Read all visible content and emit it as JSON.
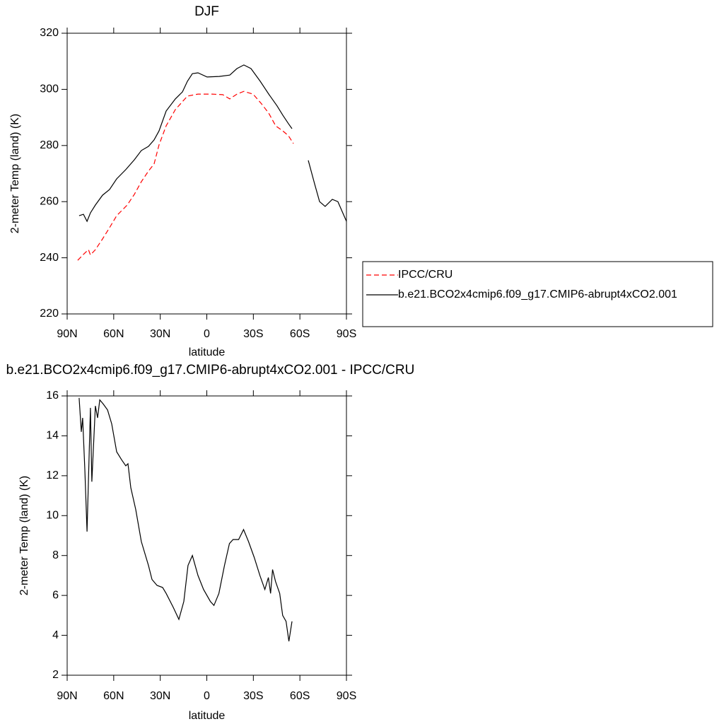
{
  "chart_data": [
    {
      "type": "line",
      "title": "DJF",
      "xlabel": "latitude",
      "ylabel": "2-meter Temp (land) (K)",
      "xlim": [
        90,
        -90
      ],
      "xticks": [
        {
          "value": 90,
          "label": "90N"
        },
        {
          "value": 60,
          "label": "60N"
        },
        {
          "value": 30,
          "label": "30N"
        },
        0,
        {
          "value": -30,
          "label": "30S"
        },
        {
          "value": -60,
          "label": "60S"
        },
        {
          "value": -90,
          "label": "90S"
        }
      ],
      "ylim": [
        220,
        320
      ],
      "yticks": [
        220,
        240,
        260,
        280,
        300,
        320
      ],
      "legend": "right",
      "series": [
        {
          "name": "IPCC/CRU",
          "color": "#ff0000",
          "dash": true,
          "x": [
            83.2,
            79.5,
            76.3,
            75,
            71.8,
            67.2,
            62.7,
            58.1,
            51.3,
            46.7,
            42.2,
            37.6,
            34,
            30.8,
            26.2,
            20.3,
            12.5,
            5.7,
            -3.4,
            -10.3,
            -14.8,
            -19.4,
            -23.9,
            -29.8,
            -35.3,
            -39.9,
            -44.4,
            -49,
            -52.6,
            -55.8
          ],
          "values": [
            239.1,
            241.2,
            242.9,
            241,
            242.9,
            246.7,
            250.7,
            255,
            258.8,
            262.6,
            267.1,
            270.9,
            273.4,
            280.2,
            287,
            292.8,
            297.6,
            298.3,
            298.3,
            298.1,
            296.6,
            298.3,
            299.3,
            298.3,
            294.8,
            291.5,
            287,
            285.2,
            283.5,
            280.7
          ]
        },
        {
          "name": "b.e21.BCO2x4cmip6.f09_g17.CMIP6-abrupt4xCO2.001",
          "color": "#000000",
          "dash": false,
          "x": [
            82.3,
            79.5,
            77.2,
            75,
            71.8,
            67.2,
            62.7,
            58.1,
            52.2,
            46.7,
            42.2,
            37.6,
            34,
            30.8,
            26.2,
            20.3,
            15.7,
            12.5,
            9.3,
            5.7,
            -0.2,
            -8,
            -14.8,
            -19.4,
            -23.9,
            -28.5,
            -34.4,
            -39.9,
            -45.3,
            -49,
            -52.6,
            -54.9,
            -60,
            -65.4,
            -69.5,
            -72.7,
            -76.3,
            -80.9,
            -84.5,
            -90
          ],
          "values": [
            255,
            255.5,
            253,
            256,
            258.8,
            262.3,
            264.3,
            268.1,
            271.4,
            274.9,
            278.2,
            279.7,
            282,
            285.2,
            292.3,
            296.6,
            299.1,
            302.9,
            305.6,
            305.9,
            304.4,
            304.6,
            305.1,
            307.4,
            308.7,
            307.4,
            302.9,
            298.3,
            294.1,
            290.8,
            287.8,
            286,
            null,
            274.7,
            266.3,
            260,
            258.3,
            260.8,
            260,
            253
          ]
        }
      ]
    },
    {
      "type": "line",
      "title": "b.e21.BCO2x4cmip6.f09_g17.CMIP6-abrupt4xCO2.001 - IPCC/CRU",
      "xlabel": "latitude",
      "ylabel": "2-meter Temp (land) (K)",
      "xlim": [
        90,
        -90
      ],
      "xticks": [
        {
          "value": 90,
          "label": "90N"
        },
        {
          "value": 60,
          "label": "60N"
        },
        {
          "value": 30,
          "label": "30N"
        },
        0,
        {
          "value": -30,
          "label": "30S"
        },
        {
          "value": -60,
          "label": "60S"
        },
        {
          "value": -90,
          "label": "90S"
        }
      ],
      "ylim": [
        2,
        16
      ],
      "yticks": [
        2,
        4,
        6,
        8,
        10,
        12,
        14,
        16
      ],
      "series": [
        {
          "color": "#000000",
          "dash": false,
          "x": [
            82.3,
            80.9,
            80,
            78.6,
            77.2,
            75,
            74.1,
            71.8,
            70.4,
            69,
            66.8,
            64,
            61.3,
            58.1,
            54.9,
            52.2,
            50.8,
            49,
            45.8,
            42.2,
            37.6,
            35.3,
            32.1,
            28.5,
            26.2,
            21.6,
            18,
            14.8,
            12.1,
            9.3,
            5.7,
            2.1,
            -2.3,
            -4.6,
            -7.8,
            -11.4,
            -14.6,
            -16.9,
            -20.5,
            -23.7,
            -26.9,
            -30.6,
            -34.2,
            -37.4,
            -39.7,
            -41.1,
            -42.4,
            -44.3,
            -47,
            -48.9,
            -51.1,
            -52.9,
            -54.9
          ],
          "values": [
            15.9,
            14.2,
            14.9,
            12.3,
            9.2,
            15.4,
            11.7,
            15.5,
            14.9,
            15.8,
            15.6,
            15.3,
            14.6,
            13.2,
            12.8,
            12.5,
            12.6,
            11.4,
            10.3,
            8.7,
            7.5,
            6.8,
            6.5,
            6.4,
            6.1,
            5.4,
            4.8,
            5.7,
            7.5,
            8,
            7,
            6.3,
            5.7,
            5.5,
            6.1,
            7.5,
            8.6,
            8.8,
            8.8,
            9.3,
            8.7,
            7.9,
            7,
            6.3,
            6.9,
            6.1,
            7.3,
            6.7,
            6.1,
            5,
            4.7,
            3.7,
            4.7
          ]
        }
      ]
    }
  ]
}
